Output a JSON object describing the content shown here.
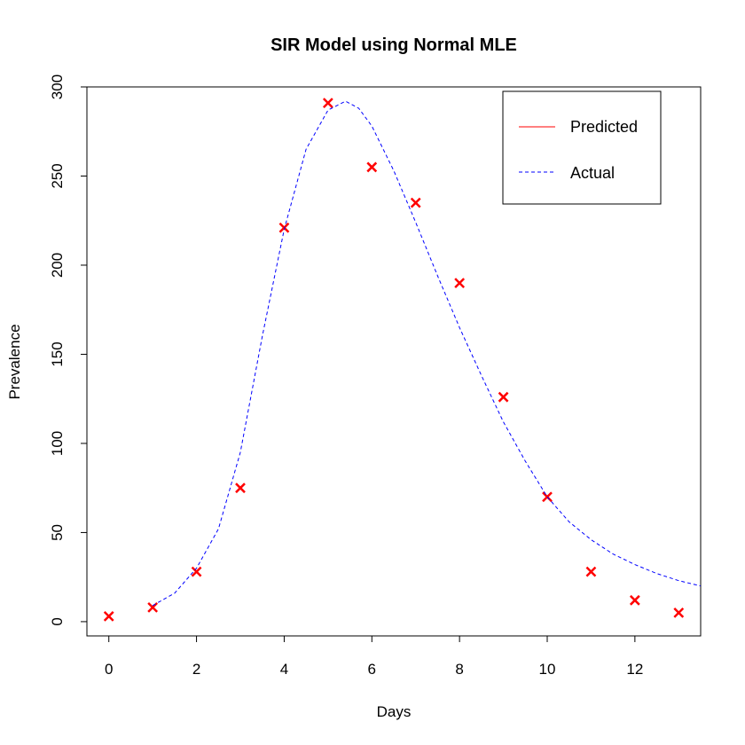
{
  "chart_data": {
    "type": "line",
    "title": "SIR Model using Normal MLE",
    "xlabel": "Days",
    "ylabel": "Prevalence",
    "xlim": [
      -0.5,
      13.5
    ],
    "ylim": [
      -8,
      300
    ],
    "x_ticks": [
      0,
      2,
      4,
      6,
      8,
      10,
      12
    ],
    "y_ticks": [
      0,
      50,
      100,
      150,
      200,
      250,
      300
    ],
    "grid": false,
    "legend": {
      "position": "top-right",
      "entries": [
        {
          "label": "Predicted",
          "color": "#ff0000",
          "line_style": "solid"
        },
        {
          "label": "Actual",
          "color": "#0000ff",
          "line_style": "dashed"
        }
      ]
    },
    "series": [
      {
        "kind": "points",
        "marker": "x",
        "color": "#ff0000",
        "x": [
          0,
          1,
          2,
          3,
          4,
          5,
          6,
          7,
          8,
          9,
          10,
          11,
          12,
          13
        ],
        "y": [
          3,
          8,
          28,
          75,
          221,
          291,
          255,
          235,
          190,
          126,
          70,
          28,
          12,
          5
        ]
      },
      {
        "kind": "line",
        "line_style": "dashed",
        "color": "#0000ff",
        "x": [
          1,
          1.5,
          2,
          2.5,
          3,
          3.5,
          4,
          4.5,
          5,
          5.4,
          5.7,
          6,
          6.5,
          7,
          7.5,
          8,
          8.5,
          9,
          9.5,
          10,
          10.5,
          11,
          11.5,
          12,
          12.5,
          13,
          13.5
        ],
        "y": [
          9,
          16,
          30,
          52,
          95,
          160,
          220,
          265,
          287,
          292,
          288,
          278,
          253,
          224,
          194,
          165,
          138,
          112,
          90,
          70,
          56,
          46,
          38,
          32,
          27,
          23,
          20
        ]
      }
    ]
  }
}
